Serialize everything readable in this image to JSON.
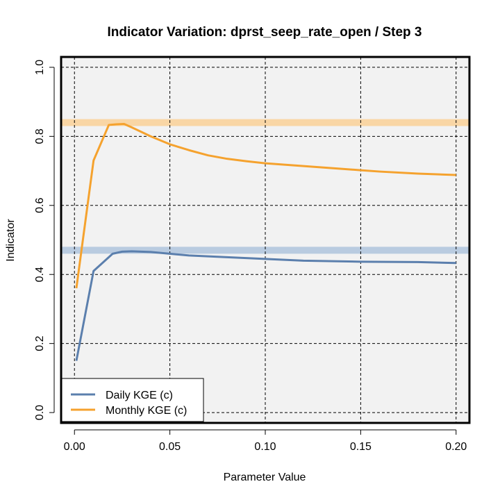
{
  "chart_data": {
    "type": "line",
    "title": "Indicator Variation: dprst_seep_rate_open / Step 3",
    "xlabel": "Parameter Value",
    "ylabel": "Indicator",
    "xlim": [
      -0.007,
      0.207
    ],
    "ylim": [
      -0.03,
      1.03
    ],
    "x_ticks": [
      0.0,
      0.05,
      0.1,
      0.15,
      0.2
    ],
    "x_tick_labels": [
      "0.00",
      "0.05",
      "0.10",
      "0.15",
      "0.20"
    ],
    "y_ticks": [
      0.0,
      0.2,
      0.4,
      0.6,
      0.8,
      1.0
    ],
    "y_tick_labels": [
      "0.0",
      "0.2",
      "0.4",
      "0.6",
      "0.8",
      "1.0"
    ],
    "grid": true,
    "legend_position": "bottom-left",
    "background_color": "#f2f2f2",
    "series": [
      {
        "name": "Daily KGE (c)",
        "color": "#5b7fad",
        "reference_band": {
          "value": 0.47,
          "color": "#b9cbe0"
        },
        "x": [
          0.001,
          0.01,
          0.02,
          0.025,
          0.03,
          0.04,
          0.05,
          0.06,
          0.08,
          0.1,
          0.12,
          0.15,
          0.18,
          0.2
        ],
        "y": [
          0.15,
          0.41,
          0.46,
          0.466,
          0.467,
          0.465,
          0.46,
          0.455,
          0.45,
          0.445,
          0.44,
          0.437,
          0.436,
          0.433
        ]
      },
      {
        "name": "Monthly KGE (c)",
        "color": "#f5a22e",
        "reference_band": {
          "value": 0.84,
          "color": "#f9d6a5"
        },
        "x": [
          0.001,
          0.01,
          0.018,
          0.022,
          0.026,
          0.03,
          0.04,
          0.05,
          0.06,
          0.07,
          0.08,
          0.09,
          0.1,
          0.12,
          0.14,
          0.15,
          0.16,
          0.18,
          0.2
        ],
        "y": [
          0.36,
          0.73,
          0.833,
          0.835,
          0.836,
          0.826,
          0.8,
          0.777,
          0.76,
          0.745,
          0.735,
          0.728,
          0.722,
          0.714,
          0.706,
          0.702,
          0.698,
          0.692,
          0.688
        ]
      }
    ]
  }
}
